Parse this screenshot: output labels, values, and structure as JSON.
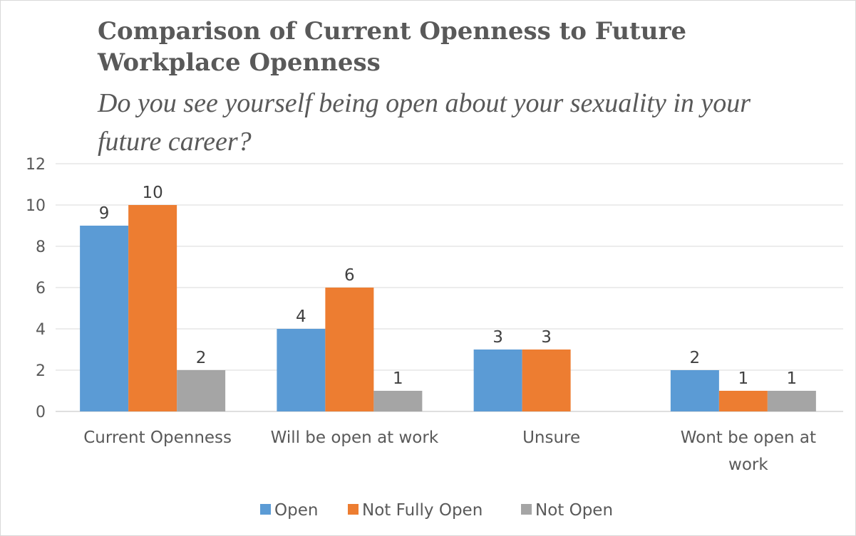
{
  "chart_data": {
    "type": "bar",
    "title": "Comparison of Current Openness to Future Workplace Openness",
    "subtitle": "Do you see yourself being open about your sexuality in your future career?",
    "categories": [
      [
        "Current Openness"
      ],
      [
        "Will be open at work"
      ],
      [
        "Unsure"
      ],
      [
        "Wont be open at",
        "work"
      ]
    ],
    "series": [
      {
        "name": "Open",
        "color": "#5b9bd5",
        "values": [
          9,
          4,
          3,
          2
        ]
      },
      {
        "name": "Not Fully Open",
        "color": "#ed7d31",
        "values": [
          10,
          6,
          3,
          1
        ]
      },
      {
        "name": "Not Open",
        "color": "#a5a5a5",
        "values": [
          2,
          1,
          null,
          1
        ]
      }
    ],
    "ylim": [
      0,
      12
    ],
    "yticks": [
      0,
      2,
      4,
      6,
      8,
      10,
      12
    ],
    "grid": true,
    "legend": "bottom"
  }
}
